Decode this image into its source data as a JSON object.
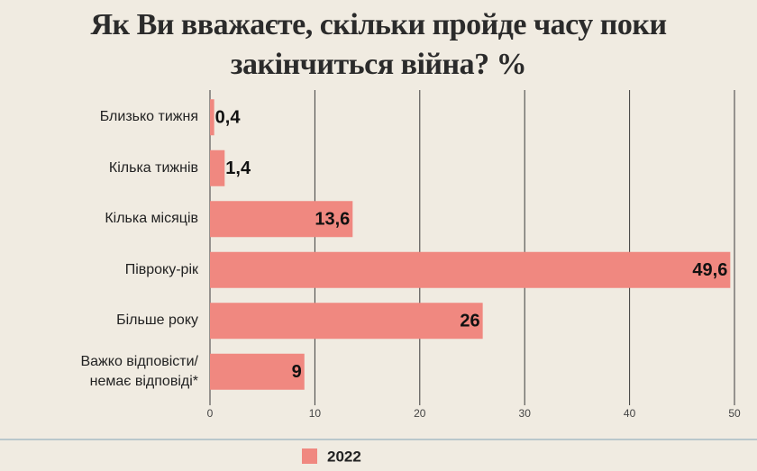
{
  "chart_data": {
    "type": "bar",
    "orientation": "horizontal",
    "title": "Як Ви вважаєте, скільки пройде часу поки закінчиться війна? %",
    "categories": [
      "Близько тижня",
      "Кілька тижнів",
      "Кілька місяців",
      "Півроку-рік",
      "Більше року",
      "Важко відповісти/ немає відповіді*"
    ],
    "series": [
      {
        "name": "2022",
        "color": "#f08880",
        "values": [
          0.4,
          1.4,
          13.6,
          49.6,
          26,
          9
        ],
        "value_labels": [
          "0,4",
          "1,4",
          "13,6",
          "49,6",
          "26",
          "9"
        ]
      }
    ],
    "xlim": [
      0,
      50
    ],
    "xticks": [
      0,
      10,
      20,
      30,
      40,
      50
    ],
    "grid": true,
    "legend": "bottom"
  }
}
